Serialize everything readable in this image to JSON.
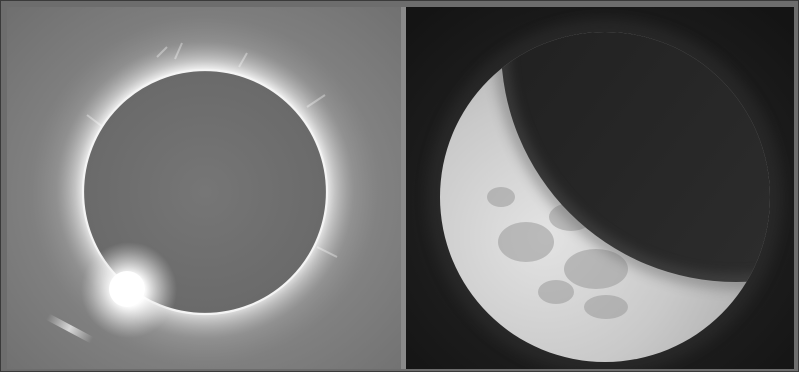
{
  "figure": {
    "panels": [
      {
        "subject": "total-solar-eclipse-diamond-ring",
        "palette": "grayscale"
      },
      {
        "subject": "partial-lunar-eclipse",
        "palette": "grayscale"
      }
    ],
    "colors": {
      "border": "#3a3a3a",
      "eclipse_sky": "#7a7a7a",
      "moon_disk": "#6f6f6f",
      "night_sky": "#1b1b1b"
    }
  }
}
